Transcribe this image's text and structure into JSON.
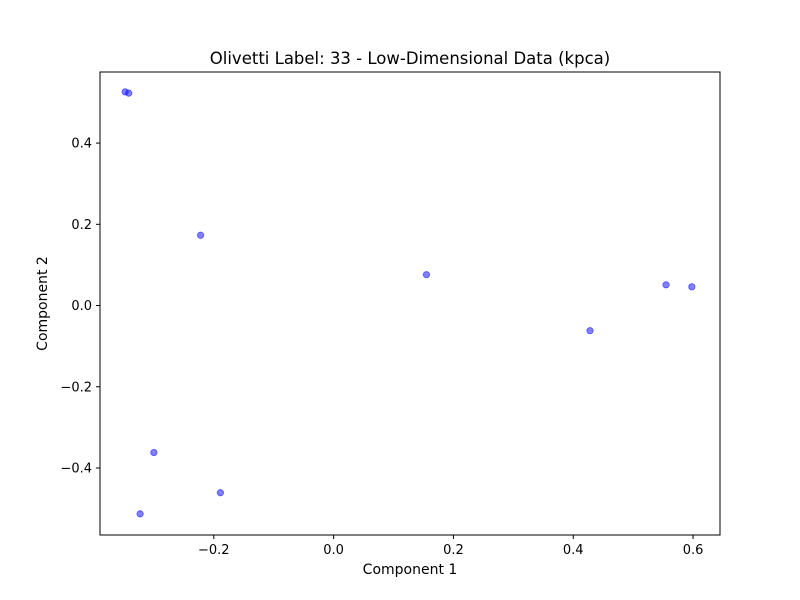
{
  "chart_data": {
    "type": "scatter",
    "title": "Olivetti Label: 33 - Low-Dimensional Data (kpca)",
    "xlabel": "Component 1",
    "ylabel": "Component 2",
    "xlim": [
      -0.39,
      0.645
    ],
    "ylim": [
      -0.565,
      0.575
    ],
    "xticks": [
      -0.2,
      0.0,
      0.2,
      0.4,
      0.6
    ],
    "xtick_labels": [
      "−0.2",
      "0.0",
      "0.2",
      "0.4",
      "0.6"
    ],
    "yticks": [
      -0.4,
      -0.2,
      0.0,
      0.2,
      0.4
    ],
    "ytick_labels": [
      "−0.4",
      "−0.2",
      "0.0",
      "0.2",
      "0.4"
    ],
    "grid": false,
    "legend": "none",
    "marker_color": "#0000ff",
    "marker_alpha": 0.5,
    "points": [
      {
        "x": -0.348,
        "y": 0.526
      },
      {
        "x": -0.342,
        "y": 0.523
      },
      {
        "x": -0.222,
        "y": 0.173
      },
      {
        "x": 0.155,
        "y": 0.076
      },
      {
        "x": 0.428,
        "y": -0.062
      },
      {
        "x": 0.555,
        "y": 0.051
      },
      {
        "x": 0.598,
        "y": 0.046
      },
      {
        "x": -0.3,
        "y": -0.362
      },
      {
        "x": -0.189,
        "y": -0.461
      },
      {
        "x": -0.323,
        "y": -0.513
      }
    ]
  }
}
